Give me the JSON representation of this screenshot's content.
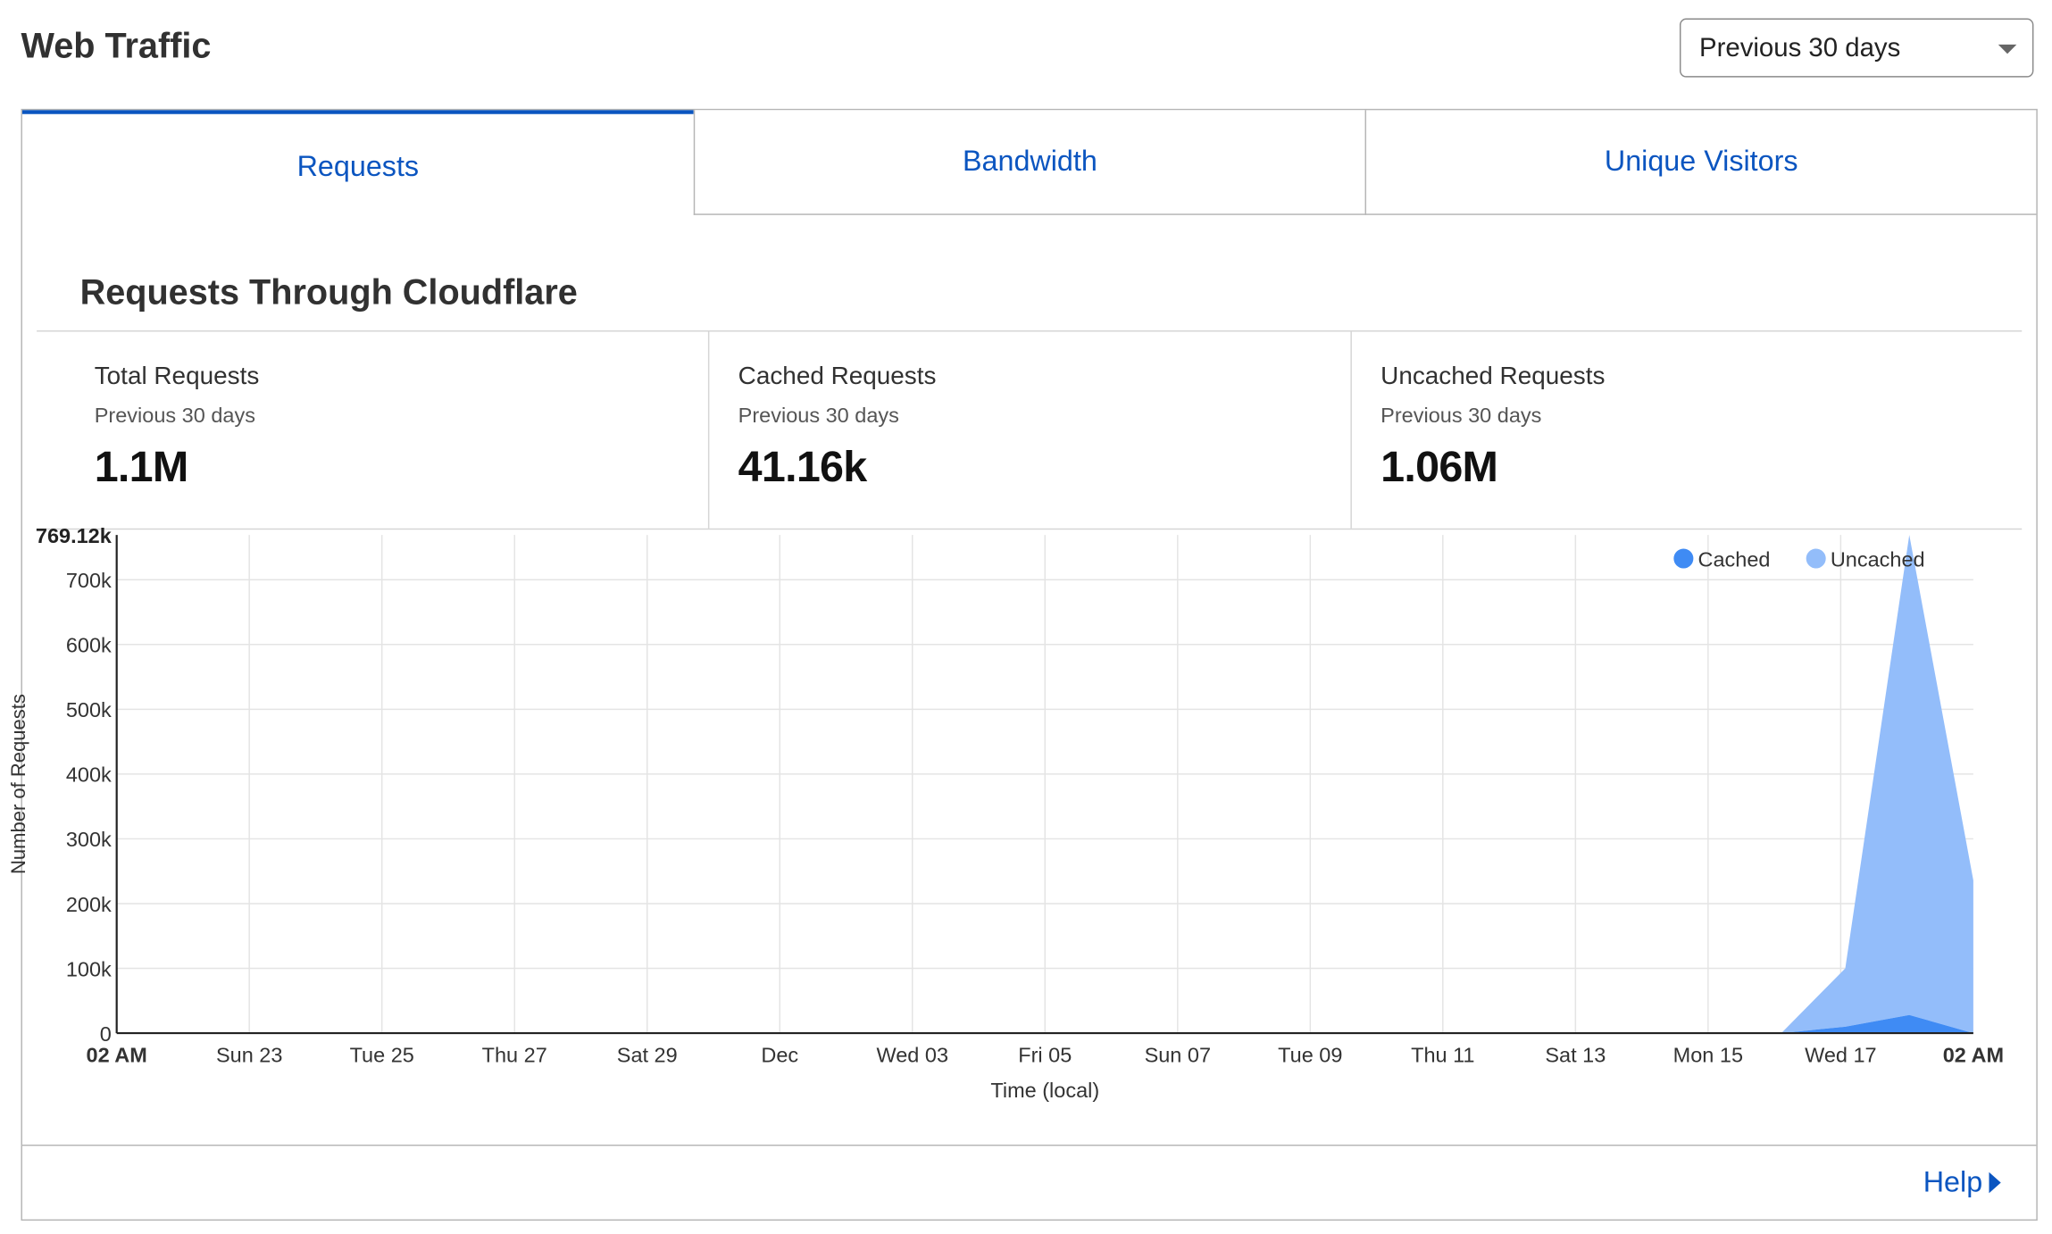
{
  "header": {
    "title": "Web Traffic",
    "range_select": {
      "value": "Previous 30 days",
      "icon": "chevron-down-icon"
    }
  },
  "tabs": [
    {
      "label": "Requests",
      "active": true
    },
    {
      "label": "Bandwidth",
      "active": false
    },
    {
      "label": "Unique Visitors",
      "active": false
    }
  ],
  "section": {
    "title": "Requests Through Cloudflare"
  },
  "stats": [
    {
      "title": "Total Requests",
      "period": "Previous 30 days",
      "value": "1.1M"
    },
    {
      "title": "Cached Requests",
      "period": "Previous 30 days",
      "value": "41.16k"
    },
    {
      "title": "Uncached Requests",
      "period": "Previous 30 days",
      "value": "1.06M"
    }
  ],
  "chart_data": {
    "type": "area",
    "ylabel": "Number of Requests",
    "xlabel": "Time (local)",
    "y_max_label": "769.12k",
    "ylim": [
      0,
      769120
    ],
    "y_ticks": [
      0,
      100000,
      200000,
      300000,
      400000,
      500000,
      600000,
      700000
    ],
    "y_tick_labels": [
      "0",
      "100k",
      "200k",
      "300k",
      "400k",
      "500k",
      "600k",
      "700k"
    ],
    "x_tick_labels": [
      "02 AM",
      "Sun 23",
      "Tue 25",
      "Thu 27",
      "Sat 29",
      "Dec",
      "Wed 03",
      "Fri 05",
      "Sun 07",
      "Tue 09",
      "Thu 11",
      "Sat 13",
      "Mon 15",
      "Wed 17",
      "02 AM"
    ],
    "x_domain_days": [
      0,
      29
    ],
    "grid": true,
    "stacked": true,
    "legend_position": "top-right",
    "series": [
      {
        "name": "Cached",
        "color": "#3f8bf4",
        "x": [
          26,
          27,
          28,
          29
        ],
        "values": [
          0,
          10000,
          28000,
          0
        ]
      },
      {
        "name": "Uncached",
        "color": "#93bdfa",
        "x": [
          26,
          27,
          28,
          29
        ],
        "values": [
          0,
          90000,
          741120,
          236000
        ]
      }
    ]
  },
  "footer": {
    "help_label": "Help",
    "help_icon": "caret-right-icon"
  },
  "colors": {
    "accent": "#0b55c0",
    "cached": "#3f8bf4",
    "uncached": "#93bdfa"
  }
}
